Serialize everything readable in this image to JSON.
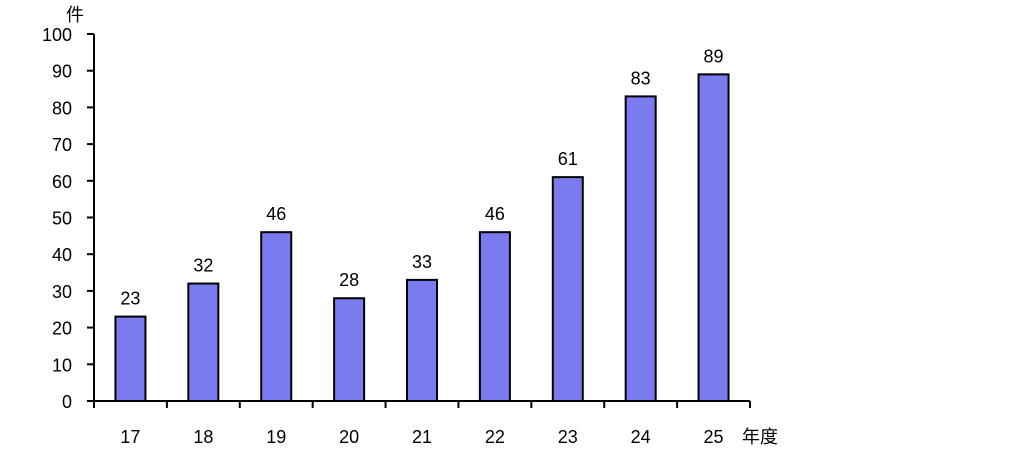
{
  "chart_data": {
    "type": "bar",
    "categories": [
      "17",
      "18",
      "19",
      "20",
      "21",
      "22",
      "23",
      "24",
      "25"
    ],
    "values": [
      23,
      32,
      46,
      28,
      33,
      46,
      61,
      83,
      89
    ],
    "data_labels": [
      "23",
      "32",
      "46",
      "28",
      "33",
      "46",
      "61",
      "83",
      "89"
    ],
    "title": "",
    "xlabel": "年度",
    "ylabel": "件",
    "ylim": [
      0,
      100
    ],
    "yticks": [
      0,
      10,
      20,
      30,
      40,
      50,
      60,
      70,
      80,
      90,
      100
    ],
    "ytick_labels": [
      "0",
      "10",
      "20",
      "30",
      "40",
      "50",
      "60",
      "70",
      "80",
      "90",
      "100"
    ],
    "grid": false,
    "legend": "none",
    "bar_color": "#7b7bf0",
    "bar_edge_color": "#000000"
  }
}
